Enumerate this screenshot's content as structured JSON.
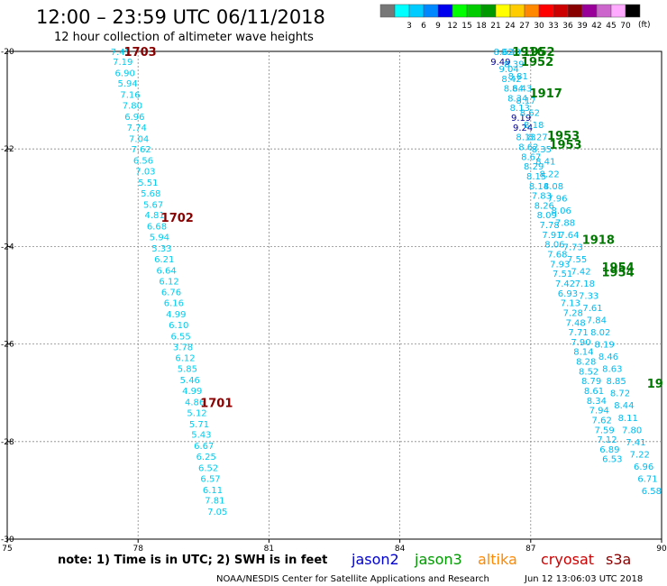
{
  "header": {
    "title": "12:00 – 23:59 UTC 06/11/2018",
    "subtitle": "12 hour collection of altimeter wave heights"
  },
  "colorbar": {
    "unit": "(ft)",
    "segments": [
      {
        "color": "#777777",
        "label": ""
      },
      {
        "color": "#00ffff",
        "label": "3"
      },
      {
        "color": "#00ccff",
        "label": "6"
      },
      {
        "color": "#0088ff",
        "label": "9"
      },
      {
        "color": "#0000ee",
        "label": "12"
      },
      {
        "color": "#00ff00",
        "label": "15"
      },
      {
        "color": "#00cc00",
        "label": "18"
      },
      {
        "color": "#009900",
        "label": "21"
      },
      {
        "color": "#ffff00",
        "label": "24"
      },
      {
        "color": "#ffcc00",
        "label": "27"
      },
      {
        "color": "#ff8800",
        "label": "30"
      },
      {
        "color": "#ff0000",
        "label": "33"
      },
      {
        "color": "#cc0000",
        "label": "36"
      },
      {
        "color": "#880000",
        "label": "39"
      },
      {
        "color": "#990099",
        "label": "42"
      },
      {
        "color": "#cc66cc",
        "label": "45"
      },
      {
        "color": "#ffaaff",
        "label": "70"
      },
      {
        "color": "#000000",
        "label": ""
      }
    ]
  },
  "chart_data": {
    "type": "scatter",
    "xlim": [
      75,
      90
    ],
    "ylim": [
      -30,
      -20
    ],
    "x_ticks": [
      75,
      78,
      81,
      84,
      87,
      90
    ],
    "x_tick_labels": [
      "75",
      "78",
      "81",
      "84",
      "87",
      "90"
    ],
    "y_ticks": [
      -20,
      -22,
      -24,
      -26,
      -28,
      -30
    ],
    "y_tick_labels": [
      "-20",
      "-22",
      "-24",
      "-26",
      "-28",
      "-30"
    ],
    "grid": true,
    "west_track": {
      "color": "#00ccee",
      "points": [
        {
          "lon": 77.6,
          "lat": -20.0,
          "v": "7.45"
        },
        {
          "lon": 77.65,
          "lat": -20.2,
          "v": "7.19"
        },
        {
          "lon": 77.7,
          "lat": -20.43,
          "v": "6.90"
        },
        {
          "lon": 77.76,
          "lat": -20.65,
          "v": "5.94"
        },
        {
          "lon": 77.82,
          "lat": -20.88,
          "v": "7.16"
        },
        {
          "lon": 77.87,
          "lat": -21.1,
          "v": "7.80"
        },
        {
          "lon": 77.92,
          "lat": -21.33,
          "v": "6.96"
        },
        {
          "lon": 77.97,
          "lat": -21.55,
          "v": "7.74"
        },
        {
          "lon": 78.02,
          "lat": -21.78,
          "v": "7.04"
        },
        {
          "lon": 78.07,
          "lat": -22.0,
          "v": "7.62"
        },
        {
          "lon": 78.12,
          "lat": -22.23,
          "v": "6.56"
        },
        {
          "lon": 78.17,
          "lat": -22.45,
          "v": "7.03"
        },
        {
          "lon": 78.23,
          "lat": -22.68,
          "v": "5.51"
        },
        {
          "lon": 78.29,
          "lat": -22.9,
          "v": "5.68"
        },
        {
          "lon": 78.35,
          "lat": -23.13,
          "v": "5.67"
        },
        {
          "lon": 78.38,
          "lat": -23.35,
          "v": "4.81"
        },
        {
          "lon": 78.43,
          "lat": -23.58,
          "v": "6.68"
        },
        {
          "lon": 78.49,
          "lat": -23.8,
          "v": "5.94"
        },
        {
          "lon": 78.54,
          "lat": -24.03,
          "v": "5.33"
        },
        {
          "lon": 78.6,
          "lat": -24.25,
          "v": "6.21"
        },
        {
          "lon": 78.65,
          "lat": -24.48,
          "v": "6.64"
        },
        {
          "lon": 78.71,
          "lat": -24.7,
          "v": "6.12"
        },
        {
          "lon": 78.76,
          "lat": -24.93,
          "v": "6.76"
        },
        {
          "lon": 78.82,
          "lat": -25.15,
          "v": "6.16"
        },
        {
          "lon": 78.87,
          "lat": -25.38,
          "v": "4.99"
        },
        {
          "lon": 78.93,
          "lat": -25.6,
          "v": "6.10"
        },
        {
          "lon": 78.98,
          "lat": -25.83,
          "v": "6.55"
        },
        {
          "lon": 79.03,
          "lat": -26.05,
          "v": "3.78"
        },
        {
          "lon": 79.08,
          "lat": -26.28,
          "v": "6.12"
        },
        {
          "lon": 79.13,
          "lat": -26.5,
          "v": "5.85"
        },
        {
          "lon": 79.19,
          "lat": -26.73,
          "v": "5.46"
        },
        {
          "lon": 79.24,
          "lat": -26.95,
          "v": "4.99"
        },
        {
          "lon": 79.3,
          "lat": -27.18,
          "v": "4.86"
        },
        {
          "lon": 79.35,
          "lat": -27.4,
          "v": "5.12"
        },
        {
          "lon": 79.4,
          "lat": -27.63,
          "v": "5.71"
        },
        {
          "lon": 79.45,
          "lat": -27.85,
          "v": "5.43"
        },
        {
          "lon": 79.51,
          "lat": -28.08,
          "v": "6.67"
        },
        {
          "lon": 79.56,
          "lat": -28.3,
          "v": "6.25"
        },
        {
          "lon": 79.61,
          "lat": -28.53,
          "v": "6.52"
        },
        {
          "lon": 79.66,
          "lat": -28.75,
          "v": "6.57"
        },
        {
          "lon": 79.71,
          "lat": -28.98,
          "v": "6.11"
        },
        {
          "lon": 79.76,
          "lat": -29.2,
          "v": "7.81"
        },
        {
          "lon": 79.82,
          "lat": -29.43,
          "v": "7.05"
        }
      ],
      "passes": [
        {
          "lon": 78.05,
          "lat": -20.0,
          "label": "1703",
          "color": "#880000"
        },
        {
          "lon": 78.9,
          "lat": -23.4,
          "label": "1702",
          "color": "#880000"
        },
        {
          "lon": 79.8,
          "lat": -27.2,
          "label": "1701",
          "color": "#880000"
        }
      ]
    },
    "east_track": {
      "color": "#00bbee",
      "dark_color": "#000099",
      "points": [
        {
          "lon": 86.38,
          "lat": -20.0,
          "v": "8.62"
        },
        {
          "lon": 86.31,
          "lat": -20.2,
          "v": "9.49"
        },
        {
          "lon": 86.5,
          "lat": -20.35,
          "v": "9.04"
        },
        {
          "lon": 86.56,
          "lat": -20.55,
          "v": "8.42"
        },
        {
          "lon": 86.61,
          "lat": -20.75,
          "v": "8.64"
        },
        {
          "lon": 86.7,
          "lat": -20.95,
          "v": "8.34"
        },
        {
          "lon": 86.75,
          "lat": -21.15,
          "v": "8.13"
        },
        {
          "lon": 86.78,
          "lat": -21.35,
          "v": "9.19"
        },
        {
          "lon": 86.82,
          "lat": -21.55,
          "v": "9.24"
        },
        {
          "lon": 86.89,
          "lat": -21.75,
          "v": "8.13"
        },
        {
          "lon": 86.95,
          "lat": -21.95,
          "v": "8.62"
        },
        {
          "lon": 87.01,
          "lat": -22.15,
          "v": "8.67"
        },
        {
          "lon": 87.07,
          "lat": -22.35,
          "v": "8.29"
        },
        {
          "lon": 87.13,
          "lat": -22.55,
          "v": "8.15"
        },
        {
          "lon": 87.19,
          "lat": -22.75,
          "v": "8.14"
        },
        {
          "lon": 87.25,
          "lat": -22.95,
          "v": "7.83"
        },
        {
          "lon": 87.31,
          "lat": -23.15,
          "v": "8.26"
        },
        {
          "lon": 87.37,
          "lat": -23.35,
          "v": "8.09"
        },
        {
          "lon": 87.43,
          "lat": -23.55,
          "v": "7.78"
        },
        {
          "lon": 87.49,
          "lat": -23.75,
          "v": "7.91"
        },
        {
          "lon": 87.55,
          "lat": -23.95,
          "v": "8.06"
        },
        {
          "lon": 87.61,
          "lat": -24.15,
          "v": "7.68"
        },
        {
          "lon": 87.67,
          "lat": -24.35,
          "v": "7.93"
        },
        {
          "lon": 87.73,
          "lat": -24.55,
          "v": "7.51"
        },
        {
          "lon": 87.79,
          "lat": -24.75,
          "v": "7.42"
        },
        {
          "lon": 87.85,
          "lat": -24.95,
          "v": "6.93"
        },
        {
          "lon": 87.91,
          "lat": -25.15,
          "v": "7.13"
        },
        {
          "lon": 87.97,
          "lat": -25.35,
          "v": "7.28"
        },
        {
          "lon": 88.03,
          "lat": -25.55,
          "v": "7.48"
        },
        {
          "lon": 88.09,
          "lat": -25.75,
          "v": "7.71"
        },
        {
          "lon": 88.15,
          "lat": -25.95,
          "v": "7.90"
        },
        {
          "lon": 88.21,
          "lat": -26.15,
          "v": "8.14"
        },
        {
          "lon": 88.27,
          "lat": -26.35,
          "v": "8.28"
        },
        {
          "lon": 88.33,
          "lat": -26.55,
          "v": "8.52"
        },
        {
          "lon": 88.39,
          "lat": -26.75,
          "v": "8.79"
        },
        {
          "lon": 88.45,
          "lat": -26.95,
          "v": "8.61"
        },
        {
          "lon": 88.51,
          "lat": -27.15,
          "v": "8.34"
        },
        {
          "lon": 88.57,
          "lat": -27.35,
          "v": "7.94"
        },
        {
          "lon": 88.63,
          "lat": -27.55,
          "v": "7.62"
        },
        {
          "lon": 88.69,
          "lat": -27.75,
          "v": "7.59"
        },
        {
          "lon": 88.75,
          "lat": -27.95,
          "v": "7.12"
        },
        {
          "lon": 88.81,
          "lat": -28.15,
          "v": "6.89"
        },
        {
          "lon": 88.87,
          "lat": -28.35,
          "v": "6.53"
        }
      ],
      "parallel_points": [
        {
          "lon": 86.55,
          "lat": -20.0,
          "v": "8.49"
        },
        {
          "lon": 86.62,
          "lat": -20.25,
          "v": "8.39"
        },
        {
          "lon": 86.71,
          "lat": -20.5,
          "v": "8.81"
        },
        {
          "lon": 86.8,
          "lat": -20.75,
          "v": "8.43"
        },
        {
          "lon": 86.89,
          "lat": -21.0,
          "v": "8.17"
        },
        {
          "lon": 86.98,
          "lat": -21.25,
          "v": "8.62"
        },
        {
          "lon": 87.07,
          "lat": -21.5,
          "v": "8.18"
        },
        {
          "lon": 87.16,
          "lat": -21.75,
          "v": "8.27"
        },
        {
          "lon": 87.25,
          "lat": -22.0,
          "v": "8.35"
        },
        {
          "lon": 87.34,
          "lat": -22.25,
          "v": "8.41"
        },
        {
          "lon": 87.43,
          "lat": -22.5,
          "v": "8.22"
        },
        {
          "lon": 87.52,
          "lat": -22.75,
          "v": "8.08"
        },
        {
          "lon": 87.61,
          "lat": -23.0,
          "v": "7.96"
        },
        {
          "lon": 87.7,
          "lat": -23.25,
          "v": "8.06"
        },
        {
          "lon": 87.79,
          "lat": -23.5,
          "v": "7.88"
        },
        {
          "lon": 87.88,
          "lat": -23.75,
          "v": "7.64"
        },
        {
          "lon": 87.97,
          "lat": -24.0,
          "v": "7.73"
        },
        {
          "lon": 88.06,
          "lat": -24.25,
          "v": "7.55"
        },
        {
          "lon": 88.15,
          "lat": -24.5,
          "v": "7.42"
        },
        {
          "lon": 88.24,
          "lat": -24.75,
          "v": "7.18"
        },
        {
          "lon": 88.33,
          "lat": -25.0,
          "v": "7.33"
        },
        {
          "lon": 88.42,
          "lat": -25.25,
          "v": "7.61"
        },
        {
          "lon": 88.51,
          "lat": -25.5,
          "v": "7.84"
        },
        {
          "lon": 88.6,
          "lat": -25.75,
          "v": "8.02"
        },
        {
          "lon": 88.69,
          "lat": -26.0,
          "v": "8.19"
        },
        {
          "lon": 88.78,
          "lat": -26.25,
          "v": "8.46"
        },
        {
          "lon": 88.87,
          "lat": -26.5,
          "v": "8.63"
        },
        {
          "lon": 88.96,
          "lat": -26.75,
          "v": "8.85"
        },
        {
          "lon": 89.05,
          "lat": -27.0,
          "v": "8.72"
        },
        {
          "lon": 89.14,
          "lat": -27.25,
          "v": "8.44"
        },
        {
          "lon": 89.23,
          "lat": -27.5,
          "v": "8.11"
        },
        {
          "lon": 89.32,
          "lat": -27.75,
          "v": "7.80"
        },
        {
          "lon": 89.41,
          "lat": -28.0,
          "v": "7.41"
        },
        {
          "lon": 89.5,
          "lat": -28.25,
          "v": "7.22"
        },
        {
          "lon": 89.59,
          "lat": -28.5,
          "v": "6.96"
        },
        {
          "lon": 89.68,
          "lat": -28.75,
          "v": "6.71"
        },
        {
          "lon": 89.77,
          "lat": -29.0,
          "v": "6.58"
        }
      ],
      "passes": [
        {
          "lon": 86.95,
          "lat": -20.0,
          "label": "1916",
          "color": "#007700"
        },
        {
          "lon": 87.18,
          "lat": -20.0,
          "label": "1952",
          "color": "#007700"
        },
        {
          "lon": 87.15,
          "lat": -20.2,
          "label": "1952",
          "color": "#007700"
        },
        {
          "lon": 87.35,
          "lat": -20.85,
          "label": "1917",
          "color": "#007700"
        },
        {
          "lon": 87.75,
          "lat": -21.72,
          "label": "1953",
          "color": "#007700"
        },
        {
          "lon": 87.8,
          "lat": -21.9,
          "label": "1953",
          "color": "#007700"
        },
        {
          "lon": 88.55,
          "lat": -23.85,
          "label": "1918",
          "color": "#007700"
        },
        {
          "lon": 89.0,
          "lat": -24.42,
          "label": "1954",
          "color": "#007700"
        },
        {
          "lon": 89.0,
          "lat": -24.52,
          "label": "1954",
          "color": "#007700"
        },
        {
          "lon": 89.85,
          "lat": -26.8,
          "label": "19",
          "color": "#007700"
        }
      ]
    }
  },
  "footer": {
    "note": "note:  1) Time is in UTC;  2) SWH is in feet",
    "satellites": [
      {
        "label": "jason2",
        "color": "#0000cc"
      },
      {
        "label": "jason3",
        "color": "#009900"
      },
      {
        "label": "altika",
        "color": "#ff8800"
      },
      {
        "label": "cryosat",
        "color": "#cc0000"
      },
      {
        "label": "s3a",
        "color": "#880000"
      }
    ],
    "credit": "NOAA/NESDIS Center for Satellite Applications and Research",
    "timestamp": "Jun 12 13:06:03 UTC 2018"
  }
}
